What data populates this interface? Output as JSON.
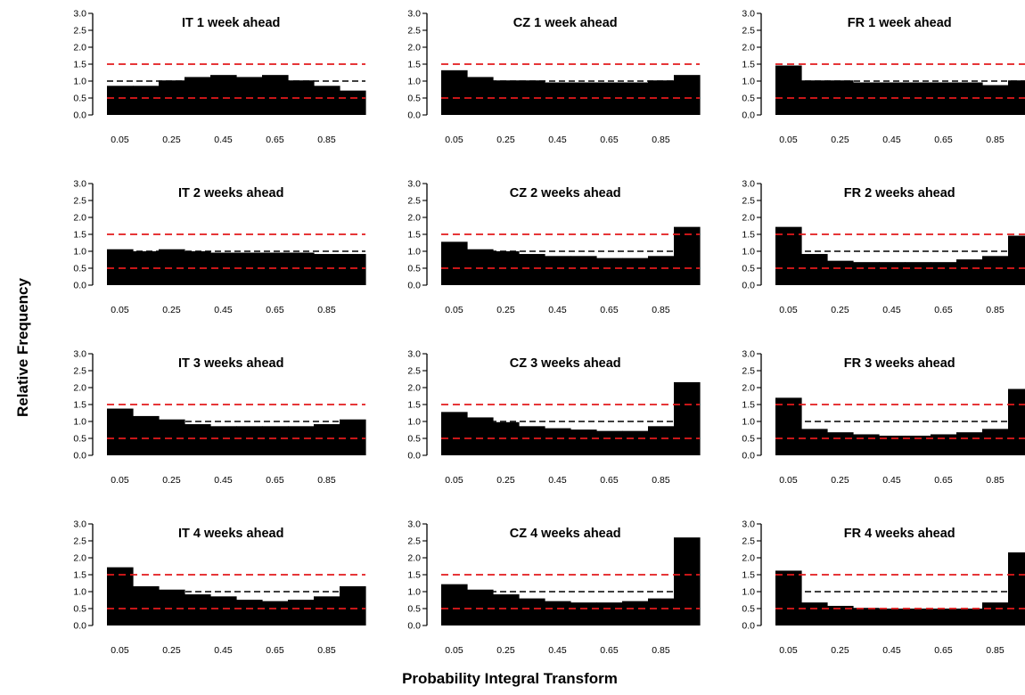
{
  "figure": {
    "xlabel": "Probability Integral Transform",
    "ylabel": "Relative Frequency",
    "colors": {
      "bars": "#000000",
      "reference_line": "#000000",
      "bounds": "#e31a1c"
    }
  },
  "chart_data": [
    {
      "type": "bar",
      "title": "IT 1 week ahead",
      "ylim": [
        0,
        3
      ],
      "yticks": [
        "0.0",
        "0.5",
        "1.0",
        "1.5",
        "2.0",
        "2.5",
        "3.0"
      ],
      "xticks": [
        "0.05",
        "0.25",
        "0.45",
        "0.65",
        "0.85"
      ],
      "reference": 1.0,
      "bounds": [
        0.5,
        1.5
      ],
      "categories": [
        "0.05",
        "0.15",
        "0.25",
        "0.35",
        "0.45",
        "0.55",
        "0.65",
        "0.75",
        "0.85",
        "0.95"
      ],
      "values": [
        0.86,
        0.86,
        1.02,
        1.12,
        1.18,
        1.12,
        1.18,
        1.02,
        0.86,
        0.72
      ]
    },
    {
      "type": "bar",
      "title": "CZ 1 week ahead",
      "ylim": [
        0,
        3
      ],
      "yticks": [
        "0.0",
        "0.5",
        "1.0",
        "1.5",
        "2.0",
        "2.5",
        "3.0"
      ],
      "xticks": [
        "0.05",
        "0.25",
        "0.45",
        "0.65",
        "0.85"
      ],
      "reference": 1.0,
      "bounds": [
        0.5,
        1.5
      ],
      "categories": [
        "0.05",
        "0.15",
        "0.25",
        "0.35",
        "0.45",
        "0.55",
        "0.65",
        "0.75",
        "0.85",
        "0.95"
      ],
      "values": [
        1.32,
        1.12,
        1.02,
        1.02,
        0.96,
        0.96,
        0.96,
        0.96,
        1.02,
        1.18
      ]
    },
    {
      "type": "bar",
      "title": "FR 1 week ahead",
      "ylim": [
        0,
        3
      ],
      "yticks": [
        "0.0",
        "0.5",
        "1.0",
        "1.5",
        "2.0",
        "2.5",
        "3.0"
      ],
      "xticks": [
        "0.05",
        "0.25",
        "0.45",
        "0.65",
        "0.85"
      ],
      "reference": 1.0,
      "bounds": [
        0.5,
        1.5
      ],
      "categories": [
        "0.05",
        "0.15",
        "0.25",
        "0.35",
        "0.45",
        "0.55",
        "0.65",
        "0.75",
        "0.85",
        "0.95"
      ],
      "values": [
        1.46,
        1.02,
        1.02,
        0.96,
        0.96,
        0.96,
        0.96,
        0.96,
        0.88,
        1.02
      ]
    },
    {
      "type": "bar",
      "title": "IT 2 weeks ahead",
      "ylim": [
        0,
        3
      ],
      "yticks": [
        "0.0",
        "0.5",
        "1.0",
        "1.5",
        "2.0",
        "2.5",
        "3.0"
      ],
      "xticks": [
        "0.05",
        "0.25",
        "0.45",
        "0.65",
        "0.85"
      ],
      "reference": 1.0,
      "bounds": [
        0.5,
        1.5
      ],
      "categories": [
        "0.05",
        "0.15",
        "0.25",
        "0.35",
        "0.45",
        "0.55",
        "0.65",
        "0.75",
        "0.85",
        "0.95"
      ],
      "values": [
        1.06,
        1.0,
        1.06,
        1.0,
        0.96,
        0.96,
        0.96,
        0.96,
        0.92,
        0.92
      ]
    },
    {
      "type": "bar",
      "title": "CZ 2 weeks ahead",
      "ylim": [
        0,
        3
      ],
      "yticks": [
        "0.0",
        "0.5",
        "1.0",
        "1.5",
        "2.0",
        "2.5",
        "3.0"
      ],
      "xticks": [
        "0.05",
        "0.25",
        "0.45",
        "0.65",
        "0.85"
      ],
      "reference": 1.0,
      "bounds": [
        0.5,
        1.5
      ],
      "categories": [
        "0.05",
        "0.15",
        "0.25",
        "0.35",
        "0.45",
        "0.55",
        "0.65",
        "0.75",
        "0.85",
        "0.95"
      ],
      "values": [
        1.28,
        1.06,
        1.0,
        0.92,
        0.86,
        0.86,
        0.8,
        0.8,
        0.86,
        1.72
      ]
    },
    {
      "type": "bar",
      "title": "FR 2 weeks ahead",
      "ylim": [
        0,
        3
      ],
      "yticks": [
        "0.0",
        "0.5",
        "1.0",
        "1.5",
        "2.0",
        "2.5",
        "3.0"
      ],
      "xticks": [
        "0.05",
        "0.25",
        "0.45",
        "0.65",
        "0.85"
      ],
      "reference": 1.0,
      "bounds": [
        0.5,
        1.5
      ],
      "categories": [
        "0.05",
        "0.15",
        "0.25",
        "0.35",
        "0.45",
        "0.55",
        "0.65",
        "0.75",
        "0.85",
        "0.95"
      ],
      "values": [
        1.72,
        0.92,
        0.72,
        0.68,
        0.68,
        0.68,
        0.68,
        0.76,
        0.86,
        1.46
      ]
    },
    {
      "type": "bar",
      "title": "IT 3 weeks ahead",
      "ylim": [
        0,
        3
      ],
      "yticks": [
        "0.0",
        "0.5",
        "1.0",
        "1.5",
        "2.0",
        "2.5",
        "3.0"
      ],
      "xticks": [
        "0.05",
        "0.25",
        "0.45",
        "0.65",
        "0.85"
      ],
      "reference": 1.0,
      "bounds": [
        0.5,
        1.5
      ],
      "categories": [
        "0.05",
        "0.15",
        "0.25",
        "0.35",
        "0.45",
        "0.55",
        "0.65",
        "0.75",
        "0.85",
        "0.95"
      ],
      "values": [
        1.38,
        1.16,
        1.06,
        0.92,
        0.86,
        0.86,
        0.86,
        0.86,
        0.92,
        1.06
      ]
    },
    {
      "type": "bar",
      "title": "CZ 3 weeks ahead",
      "ylim": [
        0,
        3
      ],
      "yticks": [
        "0.0",
        "0.5",
        "1.0",
        "1.5",
        "2.0",
        "2.5",
        "3.0"
      ],
      "xticks": [
        "0.05",
        "0.25",
        "0.45",
        "0.65",
        "0.85"
      ],
      "reference": 1.0,
      "bounds": [
        0.5,
        1.5
      ],
      "categories": [
        "0.05",
        "0.15",
        "0.25",
        "0.35",
        "0.45",
        "0.55",
        "0.65",
        "0.75",
        "0.85",
        "0.95"
      ],
      "values": [
        1.28,
        1.12,
        0.98,
        0.86,
        0.8,
        0.76,
        0.72,
        0.72,
        0.86,
        2.16
      ]
    },
    {
      "type": "bar",
      "title": "FR 3 weeks ahead",
      "ylim": [
        0,
        3
      ],
      "yticks": [
        "0.0",
        "0.5",
        "1.0",
        "1.5",
        "2.0",
        "2.5",
        "3.0"
      ],
      "xticks": [
        "0.05",
        "0.25",
        "0.45",
        "0.65",
        "0.85"
      ],
      "reference": 1.0,
      "bounds": [
        0.5,
        1.5
      ],
      "categories": [
        "0.05",
        "0.15",
        "0.25",
        "0.35",
        "0.45",
        "0.55",
        "0.65",
        "0.75",
        "0.85",
        "0.95"
      ],
      "values": [
        1.7,
        0.78,
        0.68,
        0.62,
        0.58,
        0.58,
        0.62,
        0.68,
        0.78,
        1.96
      ]
    },
    {
      "type": "bar",
      "title": "IT 4 weeks ahead",
      "ylim": [
        0,
        3
      ],
      "yticks": [
        "0.0",
        "0.5",
        "1.0",
        "1.5",
        "2.0",
        "2.5",
        "3.0"
      ],
      "xticks": [
        "0.05",
        "0.25",
        "0.45",
        "0.65",
        "0.85"
      ],
      "reference": 1.0,
      "bounds": [
        0.5,
        1.5
      ],
      "categories": [
        "0.05",
        "0.15",
        "0.25",
        "0.35",
        "0.45",
        "0.55",
        "0.65",
        "0.75",
        "0.85",
        "0.95"
      ],
      "values": [
        1.72,
        1.16,
        1.06,
        0.92,
        0.86,
        0.76,
        0.72,
        0.76,
        0.86,
        1.16
      ]
    },
    {
      "type": "bar",
      "title": "CZ 4 weeks ahead",
      "ylim": [
        0,
        3
      ],
      "yticks": [
        "0.0",
        "0.5",
        "1.0",
        "1.5",
        "2.0",
        "2.5",
        "3.0"
      ],
      "xticks": [
        "0.05",
        "0.25",
        "0.45",
        "0.65",
        "0.85"
      ],
      "reference": 1.0,
      "bounds": [
        0.5,
        1.5
      ],
      "categories": [
        "0.05",
        "0.15",
        "0.25",
        "0.35",
        "0.45",
        "0.55",
        "0.65",
        "0.75",
        "0.85",
        "0.95"
      ],
      "values": [
        1.22,
        1.06,
        0.92,
        0.8,
        0.72,
        0.68,
        0.68,
        0.72,
        0.8,
        2.6
      ]
    },
    {
      "type": "bar",
      "title": "FR 4 weeks ahead",
      "ylim": [
        0,
        3
      ],
      "yticks": [
        "0.0",
        "0.5",
        "1.0",
        "1.5",
        "2.0",
        "2.5",
        "3.0"
      ],
      "xticks": [
        "0.05",
        "0.25",
        "0.45",
        "0.65",
        "0.85"
      ],
      "reference": 1.0,
      "bounds": [
        0.5,
        1.5
      ],
      "categories": [
        "0.05",
        "0.15",
        "0.25",
        "0.35",
        "0.45",
        "0.55",
        "0.65",
        "0.75",
        "0.85",
        "0.95"
      ],
      "values": [
        1.62,
        0.68,
        0.58,
        0.52,
        0.5,
        0.5,
        0.5,
        0.5,
        0.68,
        2.16
      ]
    }
  ]
}
